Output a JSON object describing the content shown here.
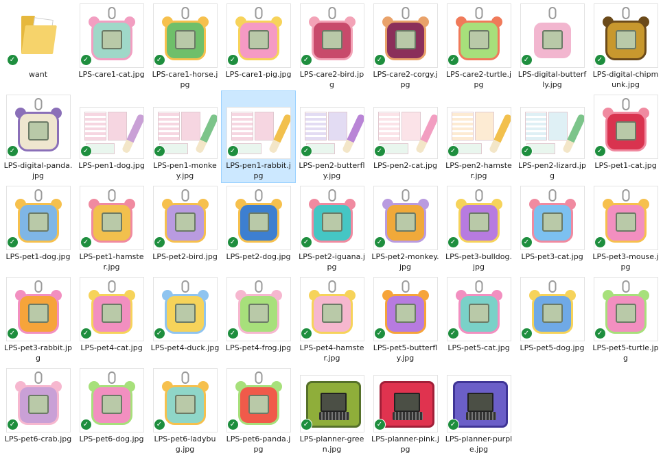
{
  "icons": {
    "check": "✓"
  },
  "colors": {
    "selected_bg": "#cce8ff",
    "check_green": "#1e8e3e"
  },
  "selected_item": "LPS-pen1-rabbit.jpg",
  "items": [
    {
      "name": "want",
      "kind": "folder",
      "colors": [
        "#f6d36b"
      ]
    },
    {
      "name": "LPS-care1-cat.jpg",
      "kind": "device",
      "colors": [
        "#9fd8c8",
        "#f29ec1"
      ]
    },
    {
      "name": "LPS-care1-horse.jpg",
      "kind": "device",
      "colors": [
        "#6fbf6a",
        "#f6c04d"
      ]
    },
    {
      "name": "LPS-care1-pig.jpg",
      "kind": "device",
      "colors": [
        "#f59ac4",
        "#f7d35a"
      ]
    },
    {
      "name": "LPS-care2-bird.jpg",
      "kind": "device",
      "colors": [
        "#c84a6b",
        "#f3a3b7"
      ]
    },
    {
      "name": "LPS-care2-corgy.jpg",
      "kind": "device",
      "colors": [
        "#8b2f5a",
        "#e9a26a"
      ]
    },
    {
      "name": "LPS-care2-turtle.jpg",
      "kind": "device",
      "colors": [
        "#a7e07b",
        "#f07a5a"
      ]
    },
    {
      "name": "LPS-digital-butterfly.jpg",
      "kind": "device",
      "colors": [
        "#f2b6cf",
        "#ffffff"
      ]
    },
    {
      "name": "LPS-digital-chipmunk.jpg",
      "kind": "device",
      "colors": [
        "#c8982e",
        "#6b4a1a"
      ]
    },
    {
      "name": "LPS-digital-panda.jpg",
      "kind": "device",
      "colors": [
        "#efe6cf",
        "#8a6fb8"
      ]
    },
    {
      "name": "LPS-pen1-dog.jpg",
      "kind": "pen",
      "colors": [
        "#f6d6e1",
        "#c9a0d6"
      ]
    },
    {
      "name": "LPS-pen1-monkey.jpg",
      "kind": "pen",
      "colors": [
        "#f6d6e1",
        "#7cc48a"
      ]
    },
    {
      "name": "LPS-pen1-rabbit.jpg",
      "kind": "pen",
      "colors": [
        "#f6d6e1",
        "#f2c04d"
      ]
    },
    {
      "name": "LPS-pen2-butterfly.jpg",
      "kind": "pen",
      "colors": [
        "#e3dcf3",
        "#b985d6"
      ]
    },
    {
      "name": "LPS-pen2-cat.jpg",
      "kind": "pen",
      "colors": [
        "#fbe3e8",
        "#f29ec1"
      ]
    },
    {
      "name": "LPS-pen2-hamster.jpg",
      "kind": "pen",
      "colors": [
        "#fdebd3",
        "#f2c04d"
      ]
    },
    {
      "name": "LPS-pen2-lizard.jpg",
      "kind": "pen",
      "colors": [
        "#dff0f5",
        "#7cc48a"
      ]
    },
    {
      "name": "LPS-pet1-cat.jpg",
      "kind": "device",
      "colors": [
        "#d9334f",
        "#f08aa0"
      ]
    },
    {
      "name": "LPS-pet1-dog.jpg",
      "kind": "device",
      "colors": [
        "#7fb6e6",
        "#f6c04d"
      ]
    },
    {
      "name": "LPS-pet1-hamster.jpg",
      "kind": "device",
      "colors": [
        "#f2c04d",
        "#f08aa0"
      ]
    },
    {
      "name": "LPS-pet2-bird.jpg",
      "kind": "device",
      "colors": [
        "#b99be0",
        "#f6c04d"
      ]
    },
    {
      "name": "LPS-pet2-dog.jpg",
      "kind": "device",
      "colors": [
        "#3d7fd0",
        "#f6c04d"
      ]
    },
    {
      "name": "LPS-pet2-iguana.jpg",
      "kind": "device",
      "colors": [
        "#45c6c4",
        "#f08aa0"
      ]
    },
    {
      "name": "LPS-pet2-monkey.jpg",
      "kind": "device",
      "colors": [
        "#f0a93a",
        "#b99be0"
      ]
    },
    {
      "name": "LPS-pet3-bulldog.jpg",
      "kind": "device",
      "colors": [
        "#b77be0",
        "#f6d35a"
      ]
    },
    {
      "name": "LPS-pet3-cat.jpg",
      "kind": "device",
      "colors": [
        "#7cc0f0",
        "#f08aa0"
      ]
    },
    {
      "name": "LPS-pet3-mouse.jpg",
      "kind": "device",
      "colors": [
        "#f28fc0",
        "#f6c04d"
      ]
    },
    {
      "name": "LPS-pet3-rabbit.jpg",
      "kind": "device",
      "colors": [
        "#f6a43a",
        "#f28fc0"
      ]
    },
    {
      "name": "LPS-pet4-cat.jpg",
      "kind": "device",
      "colors": [
        "#f28fc0",
        "#f6d35a"
      ]
    },
    {
      "name": "LPS-pet4-duck.jpg",
      "kind": "device",
      "colors": [
        "#f6d35a",
        "#8fc4f0"
      ]
    },
    {
      "name": "LPS-pet4-frog.jpg",
      "kind": "device",
      "colors": [
        "#a7e07b",
        "#f6b7cf"
      ]
    },
    {
      "name": "LPS-pet4-hamster.jpg",
      "kind": "device",
      "colors": [
        "#f6b7cf",
        "#f6d35a"
      ]
    },
    {
      "name": "LPS-pet5-butterfly.jpg",
      "kind": "device",
      "colors": [
        "#b77be0",
        "#f6a43a"
      ]
    },
    {
      "name": "LPS-pet5-cat.jpg",
      "kind": "device",
      "colors": [
        "#7ad1c8",
        "#f28fc0"
      ]
    },
    {
      "name": "LPS-pet5-dog.jpg",
      "kind": "device",
      "colors": [
        "#6fa9e6",
        "#f6d35a"
      ]
    },
    {
      "name": "LPS-pet5-turtle.jpg",
      "kind": "device",
      "colors": [
        "#f28fc0",
        "#a7e07b"
      ]
    },
    {
      "name": "LPS-pet6-crab.jpg",
      "kind": "device",
      "colors": [
        "#c9a0d6",
        "#f6b7cf"
      ]
    },
    {
      "name": "LPS-pet6-dog.jpg",
      "kind": "device",
      "colors": [
        "#f28fc0",
        "#a7e07b"
      ]
    },
    {
      "name": "LPS-pet6-ladybug.jpg",
      "kind": "device",
      "colors": [
        "#8fd6c8",
        "#f6c04d"
      ]
    },
    {
      "name": "LPS-pet6-panda.jpg",
      "kind": "device",
      "colors": [
        "#f05a4a",
        "#a7e07b"
      ]
    },
    {
      "name": "LPS-planner-green.jpg",
      "kind": "planner",
      "colors": [
        "#8fae3a",
        "#55702a"
      ]
    },
    {
      "name": "LPS-planner-pink.jpg",
      "kind": "planner",
      "colors": [
        "#e0334f",
        "#a11f38"
      ]
    },
    {
      "name": "LPS-planner-purple.jpg",
      "kind": "planner",
      "colors": [
        "#6b5fc8",
        "#3f3596"
      ]
    }
  ]
}
